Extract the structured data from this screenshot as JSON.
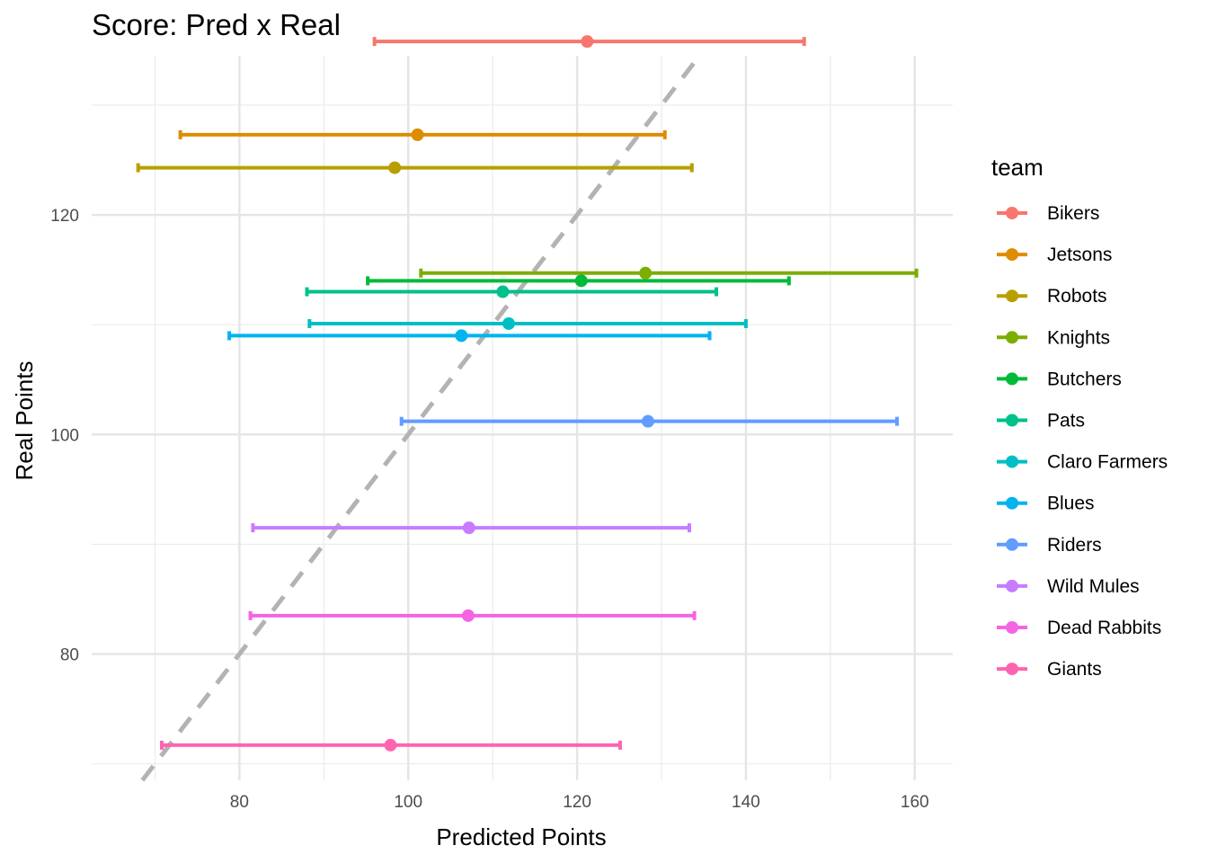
{
  "chart_data": {
    "type": "scatter",
    "title": "Score: Pred x Real",
    "xlabel": "Predicted Points",
    "ylabel": "Real Points",
    "xlim": [
      62.5,
      164.5
    ],
    "ylim": [
      68.5,
      134.5
    ],
    "x_ticks": [
      80,
      100,
      120,
      140,
      160
    ],
    "y_ticks": [
      80,
      100,
      120
    ],
    "x_minor_ticks": [
      70,
      90,
      110,
      130,
      150
    ],
    "y_minor_ticks": [
      70,
      90,
      110,
      130
    ],
    "grid": true,
    "legend_title": "team",
    "legend_position": "right",
    "reference_line": {
      "type": "identity",
      "style": "dashed",
      "color": "#b3b3b3"
    },
    "series": [
      {
        "name": "Bikers",
        "color": "#F8766D",
        "x": 121.2,
        "y": 135.8,
        "xmin": 96.0,
        "xmax": 146.9
      },
      {
        "name": "Jetsons",
        "color": "#DE8C00",
        "x": 101.1,
        "y": 127.3,
        "xmin": 73.0,
        "xmax": 130.4
      },
      {
        "name": "Robots",
        "color": "#B79F00",
        "x": 98.4,
        "y": 124.3,
        "xmin": 68.0,
        "xmax": 133.6
      },
      {
        "name": "Knights",
        "color": "#7CAE00",
        "x": 128.1,
        "y": 114.7,
        "xmin": 101.5,
        "xmax": 160.2
      },
      {
        "name": "Butchers",
        "color": "#00BA38",
        "x": 120.5,
        "y": 114.0,
        "xmin": 95.2,
        "xmax": 145.1
      },
      {
        "name": "Pats",
        "color": "#00C08B",
        "x": 111.2,
        "y": 113.0,
        "xmin": 88.0,
        "xmax": 136.5
      },
      {
        "name": "Claro Farmers",
        "color": "#00BFC4",
        "x": 111.9,
        "y": 110.1,
        "xmin": 88.3,
        "xmax": 140.0
      },
      {
        "name": "Blues",
        "color": "#00B4F0",
        "x": 106.3,
        "y": 109.0,
        "xmin": 78.8,
        "xmax": 135.7
      },
      {
        "name": "Riders",
        "color": "#619CFF",
        "x": 128.4,
        "y": 101.2,
        "xmin": 99.2,
        "xmax": 157.9
      },
      {
        "name": "Wild Mules",
        "color": "#C77CFF",
        "x": 107.2,
        "y": 91.5,
        "xmin": 81.6,
        "xmax": 133.3
      },
      {
        "name": "Dead Rabbits",
        "color": "#F564E3",
        "x": 107.1,
        "y": 83.5,
        "xmin": 81.3,
        "xmax": 133.9
      },
      {
        "name": "Giants",
        "color": "#FF64B0",
        "x": 97.9,
        "y": 71.7,
        "xmin": 70.8,
        "xmax": 125.1
      }
    ]
  }
}
